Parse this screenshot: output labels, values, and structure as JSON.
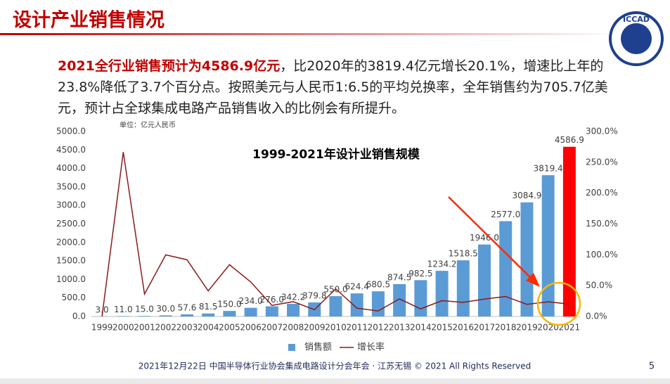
{
  "header": {
    "title": "设计产业销售情况",
    "logo": "ICCAD"
  },
  "paragraph": {
    "highlight": "2021全行业销售预计为4586.9亿元",
    "text": "，比2020年的3819.4亿元增长20.1%，增速比上年的23.8%降低了3.7个百分点。按照美元与人民币1:6.5的平均兑换率，全年销售约为705.7亿美元，预计占全球集成电路产品销售收入的比例会有所提升。"
  },
  "chart_data": {
    "type": "bar-line",
    "title": "1999-2021年设计业销售规模",
    "unit_note": "单位：亿元人民币",
    "categories": [
      "1999",
      "2000",
      "2001",
      "2002",
      "2003",
      "2004",
      "2005",
      "2006",
      "2007",
      "2008",
      "2009",
      "2010",
      "2011",
      "2012",
      "2013",
      "2014",
      "2015",
      "2016",
      "2017",
      "2018",
      "2019",
      "2020",
      "2021"
    ],
    "series": [
      {
        "name": "销售额",
        "type": "bar",
        "color": "#5b9bd5",
        "colors": [
          "#5b9bd5",
          "#5b9bd5",
          "#5b9bd5",
          "#5b9bd5",
          "#5b9bd5",
          "#5b9bd5",
          "#5b9bd5",
          "#5b9bd5",
          "#5b9bd5",
          "#5b9bd5",
          "#5b9bd5",
          "#5b9bd5",
          "#5b9bd5",
          "#5b9bd5",
          "#5b9bd5",
          "#5b9bd5",
          "#5b9bd5",
          "#5b9bd5",
          "#5b9bd5",
          "#5b9bd5",
          "#5b9bd5",
          "#5b9bd5",
          "#ff0000"
        ],
        "values": [
          3.0,
          11.0,
          15.0,
          30.0,
          57.6,
          81.5,
          150.0,
          234.0,
          276.0,
          342.2,
          379.8,
          550.0,
          624.4,
          680.5,
          874.5,
          982.5,
          1234.2,
          1518.5,
          1946.0,
          2577.0,
          3084.9,
          3819.4,
          4586.9
        ],
        "value_labels": [
          "3.0",
          "11.0",
          "15.0",
          "30.0",
          "57.6",
          "81.5",
          "150.0",
          "234.0",
          "276.0",
          "342.2",
          "379.8",
          "550.0",
          "624.4",
          "680.5",
          "874.5",
          "982.5",
          "1234.2",
          "1518.5",
          "1946.0",
          "2577.0",
          "3084.9",
          "3819.4",
          "4586.9"
        ]
      },
      {
        "name": "增长率",
        "type": "line",
        "axis": "y2",
        "color": "#8b1a1a",
        "values": [
          0,
          266.7,
          36.4,
          100,
          92,
          41.5,
          84,
          56,
          18,
          24,
          11,
          44.8,
          13.5,
          9,
          28.5,
          12.4,
          25.6,
          23,
          28.2,
          32.4,
          19.7,
          23.8,
          20.1
        ]
      }
    ],
    "ylim": [
      0,
      5000
    ],
    "yticks": [
      {
        "value": 0,
        "label": "0.0"
      },
      {
        "value": 500,
        "label": "500.0"
      },
      {
        "value": 1000,
        "label": "1000.0"
      },
      {
        "value": 1500,
        "label": "1500.0"
      },
      {
        "value": 2000,
        "label": "2000.0"
      },
      {
        "value": 2500,
        "label": "2500.0"
      },
      {
        "value": 3000,
        "label": "3000.0"
      },
      {
        "value": 3500,
        "label": "3500.0"
      },
      {
        "value": 4000,
        "label": "4000.0"
      },
      {
        "value": 4500,
        "label": "4500.0"
      },
      {
        "value": 5000,
        "label": "5000.0"
      }
    ],
    "y2lim": [
      0,
      300
    ],
    "y2ticks": [
      {
        "value": 0,
        "label": "0.0%"
      },
      {
        "value": 50,
        "label": "50.0%"
      },
      {
        "value": 100,
        "label": "100.0%"
      },
      {
        "value": 150,
        "label": "150.0%"
      },
      {
        "value": 200,
        "label": "200.0%"
      },
      {
        "value": 250,
        "label": "250.0%"
      },
      {
        "value": 300,
        "label": "300.0%"
      }
    ],
    "legend": "bottom"
  },
  "footer": {
    "text": "2021年12月22日 中国半导体行业协会集成电路设计分会年会 · 江苏无锡 © 2021 All Rights Reserved",
    "page": "5"
  }
}
